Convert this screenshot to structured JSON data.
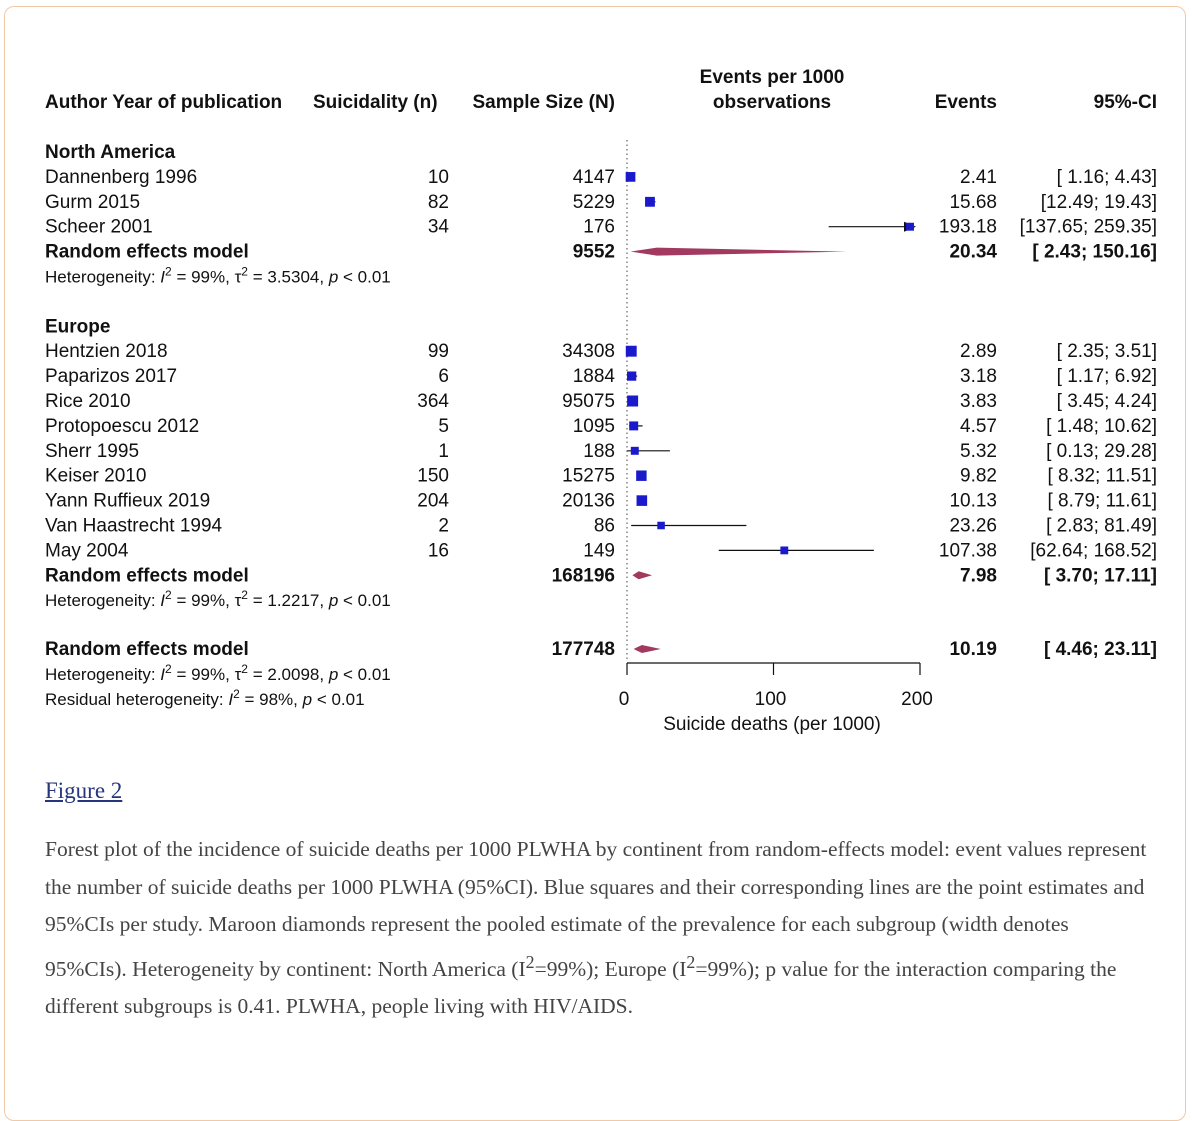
{
  "figure": {
    "link_label": "Figure 2",
    "caption_parts": [
      "Forest plot of the incidence of suicide deaths per 1000 PLWHA by continent from random-effects model: event values represent the number of suicide deaths per 1000 PLWHA (95%CI). Blue squares and their corresponding lines are the point estimates and 95%CIs per study. Maroon diamonds represent the pooled estimate of the prevalence for each subgroup (width denotes 95%CIs). Heterogeneity by continent: North America (I",
      "2",
      "=99%); Europe (I",
      "2",
      "=99%); p value for the interaction comparing the different subgroups is 0.41. PLWHA, people living with HIV/AIDS."
    ]
  },
  "colors": {
    "study_marker": "#1a1acc",
    "pooled_diamond": "#a23a60",
    "border": "#f0c9a6",
    "link": "#26357d"
  },
  "chart_data": {
    "type": "forest",
    "headers": {
      "author": "Author Year of publication",
      "suicidality": "Suicidality (n)",
      "sample": "Sample Size (N)",
      "events_per_1000": [
        "Events per 1000",
        "observations"
      ],
      "events": "Events",
      "ci": "95%-CI"
    },
    "xlim": [
      0,
      200
    ],
    "ticks": [
      0,
      100,
      200
    ],
    "xlabel": "Suicide deaths (per 1000)",
    "reference_line": 0,
    "groups": [
      {
        "name": "North America",
        "studies": [
          {
            "label": "Dannenberg 1996",
            "n": "10",
            "N": "4147",
            "est": 2.41,
            "lo": 1.16,
            "hi": 4.43,
            "events_text": "2.41",
            "ci_text": "[ 1.16; 4.43]"
          },
          {
            "label": "Gurm 2015",
            "n": "82",
            "N": "5229",
            "est": 15.68,
            "lo": 12.49,
            "hi": 19.43,
            "events_text": "15.68",
            "ci_text": "[12.49; 19.43]"
          },
          {
            "label": "Scheer 2001",
            "n": "34",
            "N": "176",
            "est": 193.18,
            "lo": 137.65,
            "hi": 259.35,
            "events_text": "193.18",
            "ci_text": "[137.65; 259.35]"
          }
        ],
        "pooled": {
          "label": "Random effects model",
          "N": "9552",
          "est": 20.34,
          "lo": 2.43,
          "hi": 150.16,
          "events_text": "20.34",
          "ci_text": "[ 2.43; 150.16]"
        },
        "heterogeneity": {
          "I2": "99%",
          "tau2": "3.5304",
          "p": "0.01"
        }
      },
      {
        "name": "Europe",
        "studies": [
          {
            "label": "Hentzien 2018",
            "n": "99",
            "N": "34308",
            "est": 2.89,
            "lo": 2.35,
            "hi": 3.51,
            "events_text": "2.89",
            "ci_text": "[ 2.35; 3.51]"
          },
          {
            "label": "Paparizos 2017",
            "n": "6",
            "N": "1884",
            "est": 3.18,
            "lo": 1.17,
            "hi": 6.92,
            "events_text": "3.18",
            "ci_text": "[ 1.17; 6.92]"
          },
          {
            "label": "Rice 2010",
            "n": "364",
            "N": "95075",
            "est": 3.83,
            "lo": 3.45,
            "hi": 4.24,
            "events_text": "3.83",
            "ci_text": "[ 3.45; 4.24]"
          },
          {
            "label": "Protopoescu 2012",
            "n": "5",
            "N": "1095",
            "est": 4.57,
            "lo": 1.48,
            "hi": 10.62,
            "events_text": "4.57",
            "ci_text": "[ 1.48; 10.62]"
          },
          {
            "label": "Sherr 1995",
            "n": "1",
            "N": "188",
            "est": 5.32,
            "lo": 0.13,
            "hi": 29.28,
            "events_text": "5.32",
            "ci_text": "[ 0.13; 29.28]"
          },
          {
            "label": "Keiser 2010",
            "n": "150",
            "N": "15275",
            "est": 9.82,
            "lo": 8.32,
            "hi": 11.51,
            "events_text": "9.82",
            "ci_text": "[ 8.32; 11.51]"
          },
          {
            "label": "Yann Ruffieux 2019",
            "n": "204",
            "N": "20136",
            "est": 10.13,
            "lo": 8.79,
            "hi": 11.61,
            "events_text": "10.13",
            "ci_text": "[ 8.79; 11.61]"
          },
          {
            "label": "Van Haastrecht 1994",
            "n": "2",
            "N": "86",
            "est": 23.26,
            "lo": 2.83,
            "hi": 81.49,
            "events_text": "23.26",
            "ci_text": "[ 2.83; 81.49]"
          },
          {
            "label": "May 2004",
            "n": "16",
            "N": "149",
            "est": 107.38,
            "lo": 62.64,
            "hi": 168.52,
            "events_text": "107.38",
            "ci_text": "[62.64; 168.52]"
          }
        ],
        "pooled": {
          "label": "Random effects model",
          "N": "168196",
          "est": 7.98,
          "lo": 3.7,
          "hi": 17.11,
          "events_text": "7.98",
          "ci_text": "[ 3.70; 17.11]"
        },
        "heterogeneity": {
          "I2": "99%",
          "tau2": "1.2217",
          "p": "0.01"
        }
      }
    ],
    "overall": {
      "label": "Random effects model",
      "N": "177748",
      "est": 10.19,
      "lo": 4.46,
      "hi": 23.11,
      "events_text": "10.19",
      "ci_text": "[ 4.46; 23.11]",
      "heterogeneity": {
        "I2": "99%",
        "tau2": "2.0098",
        "p": "0.01"
      },
      "residual": {
        "I2": "98%",
        "p": "0.01"
      }
    }
  }
}
